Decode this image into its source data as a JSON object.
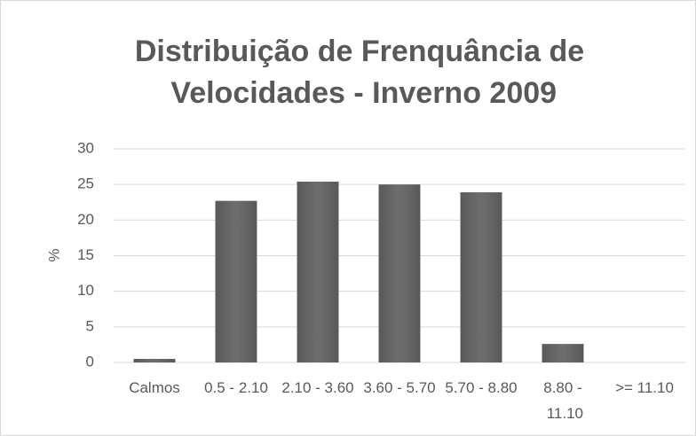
{
  "chart_data": {
    "type": "bar",
    "title": "Distribuição de Frenquância  de Velocidades - Inverno 2009",
    "ylabel": "%",
    "categories": [
      "Calmos",
      "0.5 - 2.10",
      "2.10 - 3.60",
      "3.60 - 5.70",
      "5.70 - 8.80",
      "8.80 - 11.10",
      ">= 11.10"
    ],
    "values": [
      0.5,
      22.7,
      25.4,
      25.0,
      23.9,
      2.6,
      0
    ],
    "color": "#595959",
    "ylim": [
      0,
      30
    ],
    "yticks": [
      0,
      5,
      10,
      15,
      20,
      25,
      30
    ],
    "grid": true
  }
}
